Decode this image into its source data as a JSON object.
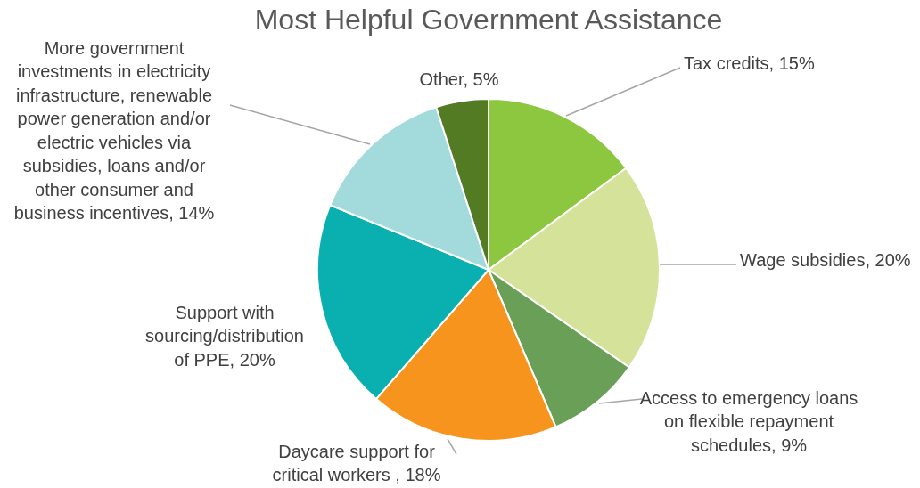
{
  "chart_data": {
    "type": "pie",
    "title": "Most Helpful Government Assistance",
    "categories": [
      "Tax credits",
      "Wage subsidies",
      "Access to emergency loans on flexible repayment schedules",
      "Daycare support for critical workers ",
      "Support with sourcing/distribution of PPE",
      "More government investments in electricity infrastructure, renewable power generation and/or electric vehicles via subsidies, loans and/or other consumer and business incentives",
      "Other"
    ],
    "values": [
      15,
      20,
      9,
      18,
      20,
      14,
      5
    ],
    "value_labels": [
      "15%",
      "20%",
      "9%",
      "18%",
      "20%",
      "14%",
      "5%"
    ],
    "colors": [
      "#8dc63f",
      "#d4e29a",
      "#6a9f57",
      "#f7941d",
      "#0ab0b0",
      "#a3dadb",
      "#537b24"
    ],
    "legend": false
  }
}
